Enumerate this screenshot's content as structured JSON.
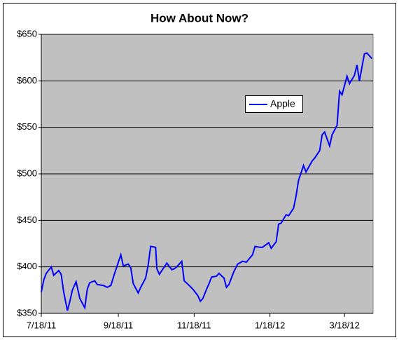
{
  "chart_data": {
    "type": "line",
    "title": "How About Now?",
    "x": [
      "2011-07-18",
      "2011-07-20",
      "2011-07-22",
      "2011-07-26",
      "2011-07-28",
      "2011-08-01",
      "2011-08-03",
      "2011-08-05",
      "2011-08-08",
      "2011-08-10",
      "2011-08-12",
      "2011-08-15",
      "2011-08-18",
      "2011-08-22",
      "2011-08-24",
      "2011-08-26",
      "2011-08-30",
      "2011-09-01",
      "2011-09-06",
      "2011-09-09",
      "2011-09-12",
      "2011-09-15",
      "2011-09-20",
      "2011-09-22",
      "2011-09-26",
      "2011-09-28",
      "2011-09-30",
      "2011-10-04",
      "2011-10-06",
      "2011-10-10",
      "2011-10-12",
      "2011-10-14",
      "2011-10-18",
      "2011-10-19",
      "2011-10-21",
      "2011-10-25",
      "2011-10-27",
      "2011-10-31",
      "2011-11-02",
      "2011-11-04",
      "2011-11-08",
      "2011-11-10",
      "2011-11-14",
      "2011-11-17",
      "2011-11-21",
      "2011-11-23",
      "2011-11-25",
      "2011-11-28",
      "2011-11-30",
      "2011-12-02",
      "2011-12-06",
      "2011-12-08",
      "2011-12-12",
      "2011-12-14",
      "2011-12-16",
      "2011-12-20",
      "2011-12-23",
      "2011-12-27",
      "2011-12-30",
      "2012-01-04",
      "2012-01-06",
      "2012-01-10",
      "2012-01-12",
      "2012-01-17",
      "2012-01-19",
      "2012-01-23",
      "2012-01-25",
      "2012-01-27",
      "2012-01-31",
      "2012-02-02",
      "2012-02-06",
      "2012-02-08",
      "2012-02-10",
      "2012-02-14",
      "2012-02-16",
      "2012-02-21",
      "2012-02-23",
      "2012-02-27",
      "2012-02-29",
      "2012-03-02",
      "2012-03-06",
      "2012-03-08",
      "2012-03-12",
      "2012-03-14",
      "2012-03-16",
      "2012-03-20",
      "2012-03-22",
      "2012-03-26",
      "2012-03-28",
      "2012-03-30",
      "2012-04-03",
      "2012-04-05",
      "2012-04-09"
    ],
    "series": [
      {
        "name": "Apple",
        "color": "#0000ff",
        "values": [
          373,
          386,
          393,
          400,
          391,
          396,
          392,
          373,
          353,
          363,
          375,
          384,
          366,
          356,
          376,
          383,
          385,
          381,
          380,
          378,
          380,
          393,
          413,
          401,
          403,
          399,
          382,
          372,
          378,
          388,
          402,
          422,
          421,
          398,
          392,
          400,
          404,
          397,
          398,
          400,
          406,
          385,
          380,
          376,
          369,
          363,
          366,
          376,
          382,
          389,
          390,
          393,
          388,
          378,
          381,
          395,
          403,
          406,
          405,
          413,
          422,
          421,
          421,
          426,
          420,
          427,
          446,
          447,
          456,
          455,
          463,
          476,
          493,
          509,
          502,
          514,
          517,
          525,
          542,
          545,
          530,
          542,
          552,
          589,
          585,
          605,
          597,
          606,
          617,
          600,
          629,
          630,
          624
        ]
      }
    ],
    "xlim": [
      "2011-07-18",
      "2012-04-10"
    ],
    "xticks": [
      {
        "value": "2011-07-18",
        "label": "7/18/11"
      },
      {
        "value": "2011-09-18",
        "label": "9/18/11"
      },
      {
        "value": "2011-11-18",
        "label": "11/18/11"
      },
      {
        "value": "2012-01-18",
        "label": "1/18/12"
      },
      {
        "value": "2012-03-18",
        "label": "3/18/12"
      }
    ],
    "ylim": [
      350,
      650
    ],
    "yticks": [
      {
        "value": 350,
        "label": "$350"
      },
      {
        "value": 400,
        "label": "$400"
      },
      {
        "value": 450,
        "label": "$450"
      },
      {
        "value": 500,
        "label": "$500"
      },
      {
        "value": 550,
        "label": "$550"
      },
      {
        "value": 600,
        "label": "$600"
      },
      {
        "value": 650,
        "label": "$650"
      }
    ],
    "grid": true
  }
}
